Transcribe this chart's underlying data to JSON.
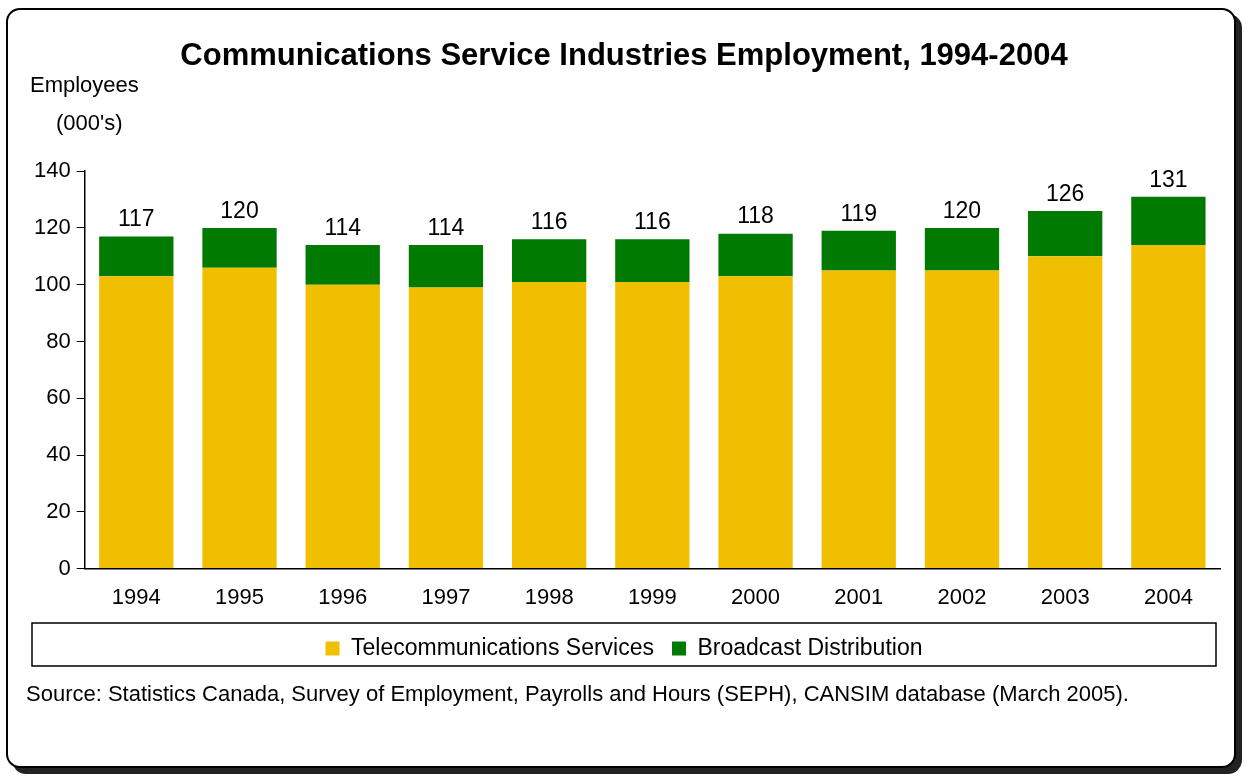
{
  "chart_data": {
    "type": "bar",
    "title": "Communications Service Industries Employment, 1994-2004",
    "ylabel": "Employees (000's)",
    "categories": [
      "1994",
      "1995",
      "1996",
      "1997",
      "1998",
      "1999",
      "2000",
      "2001",
      "2002",
      "2003",
      "2004"
    ],
    "series": [
      {
        "name": "Telecommunications Services",
        "color": "#f0c000",
        "values": [
          103,
          106,
          100,
          99,
          101,
          101,
          103,
          105,
          105,
          110,
          114
        ]
      },
      {
        "name": "Broadcast Distribution",
        "color": "#007a00",
        "values": [
          14,
          14,
          14,
          15,
          15,
          15,
          15,
          14,
          15,
          16,
          17
        ]
      }
    ],
    "stacked": true,
    "totals": [
      "117",
      "120",
      "114",
      "114",
      "116",
      "116",
      "118",
      "119",
      "120",
      "126",
      "131"
    ],
    "ylim": [
      0,
      140
    ],
    "yticks": [
      0,
      20,
      40,
      60,
      80,
      100,
      120,
      140
    ],
    "legend": "bottom",
    "annotations": [
      "Source: Statistics Canada, Survey of Employment, Payrolls and Hours (SEPH), CANSIM database (March 2005)."
    ]
  }
}
